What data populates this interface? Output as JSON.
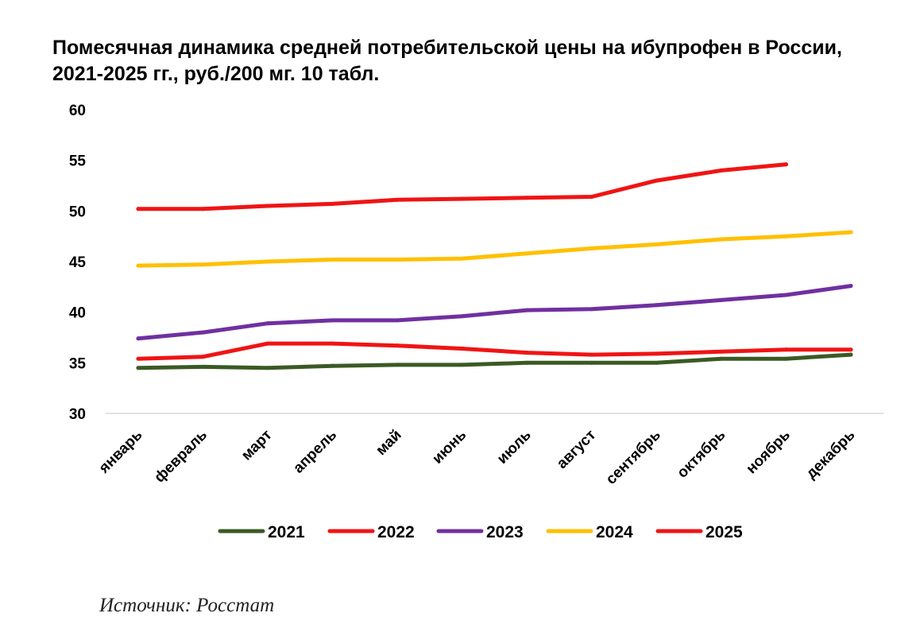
{
  "chart_data": {
    "type": "line",
    "title": "Помесячная динамика средней потребительской цены на ибупрофен в России, 2021-2025 гг., руб./200 мг. 10 табл.",
    "categories": [
      "январь",
      "февраль",
      "март",
      "апрель",
      "май",
      "июнь",
      "июль",
      "август",
      "сентябрь",
      "октябрь",
      "ноябрь",
      "декабрь"
    ],
    "ylim": [
      30,
      60
    ],
    "yticks": [
      "30",
      "35",
      "40",
      "45",
      "50",
      "55",
      "60"
    ],
    "xlabel": "",
    "ylabel": "",
    "grid": false,
    "legend_position": "bottom",
    "series": [
      {
        "name": "2021",
        "color": "#3a5a23",
        "values": [
          34.5,
          34.6,
          34.5,
          34.7,
          34.8,
          34.8,
          35.0,
          35.0,
          35.0,
          35.4,
          35.4,
          35.8
        ]
      },
      {
        "name": "2022",
        "color": "#f01414",
        "values": [
          35.4,
          35.6,
          36.9,
          36.9,
          36.7,
          36.4,
          36.0,
          35.8,
          35.9,
          36.1,
          36.3,
          36.3
        ]
      },
      {
        "name": "2023",
        "color": "#7030a0",
        "values": [
          37.4,
          38.0,
          38.9,
          39.2,
          39.2,
          39.6,
          40.2,
          40.3,
          40.7,
          41.2,
          41.7,
          42.6
        ]
      },
      {
        "name": "2024",
        "color": "#ffc000",
        "values": [
          44.6,
          44.7,
          45.0,
          45.2,
          45.2,
          45.3,
          45.8,
          46.3,
          46.7,
          47.2,
          47.5,
          47.9
        ]
      },
      {
        "name": "2025",
        "color": "#f01414",
        "values": [
          50.2,
          50.2,
          50.5,
          50.7,
          51.1,
          51.2,
          51.3,
          51.4,
          53.0,
          54.0,
          54.6,
          null
        ]
      }
    ]
  },
  "source": "Источник: Росстат"
}
